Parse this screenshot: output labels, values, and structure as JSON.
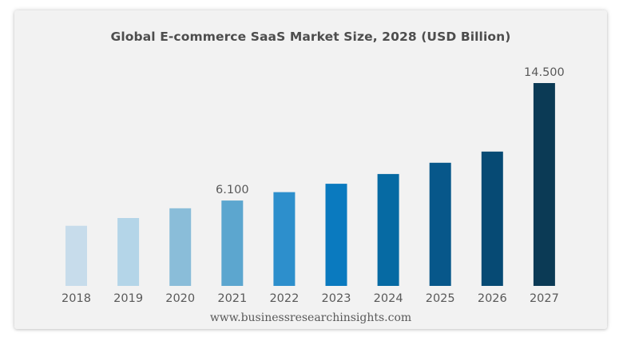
{
  "chart_data": {
    "type": "bar",
    "title": "Global E-commerce SaaS Market Size, 2028 (USD Billion)",
    "categories": [
      "2018",
      "2019",
      "2020",
      "2021",
      "2022",
      "2023",
      "2024",
      "2025",
      "2026",
      "2027"
    ],
    "values": [
      4.3,
      4.85,
      5.55,
      6.1,
      6.7,
      7.3,
      8.0,
      8.8,
      9.6,
      14.5
    ],
    "data_labels": [
      {
        "index": 3,
        "text": "6.100"
      },
      {
        "index": 9,
        "text": "14.500"
      }
    ],
    "xlabel": "",
    "ylabel": "",
    "ylim": [
      0,
      14.5
    ],
    "grid": false,
    "legend": "none",
    "bar_colors": [
      "#c7dceb",
      "#b4d5e8",
      "#8abdd9",
      "#5ca6cf",
      "#2d8fcc",
      "#0a7abf",
      "#066aa3",
      "#07578a",
      "#064a74",
      "#0b3a55"
    ]
  },
  "source": "www.businessresearchinsights.com"
}
